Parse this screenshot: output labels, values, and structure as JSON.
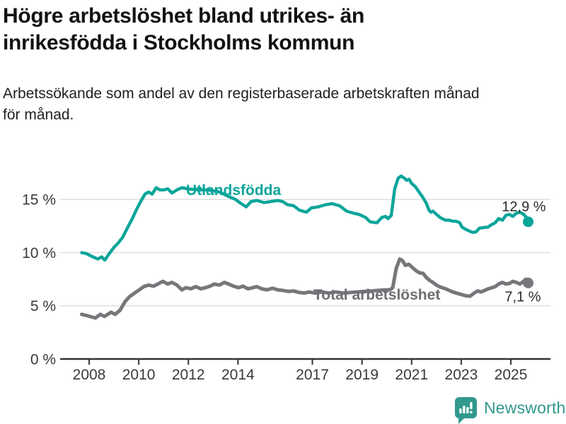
{
  "header": {
    "title_line1": "Högre arbetslöshet bland utrikes- än",
    "title_line2": "inrikesfödda i Stockholms kommun",
    "subtitle_line1": "Arbetssökande som andel av den registerbaserade arbetskraften månad",
    "subtitle_line2": "för månad."
  },
  "chart_data": {
    "type": "line",
    "title": "Högre arbetslöshet bland utrikes- än inrikesfödda i Stockholms kommun",
    "subtitle": "Arbetssökande som andel av den registerbaserade arbetskraften månad för månad.",
    "xlabel": "",
    "ylabel": "",
    "grid": true,
    "legend_position": "inline-labels",
    "xlim": [
      2007.2,
      2026.6
    ],
    "ylim": [
      0,
      18.5
    ],
    "x_ticks": [
      "2008",
      "2010",
      "2012",
      "2014",
      "2017",
      "2019",
      "2021",
      "2023",
      "2025"
    ],
    "x_tick_years": [
      2008,
      2010,
      2012,
      2014,
      2017,
      2019,
      2021,
      2023,
      2025
    ],
    "y_ticks": [
      {
        "value": 0,
        "label": "0 %"
      },
      {
        "value": 5,
        "label": "5 %"
      },
      {
        "value": 10,
        "label": "10 %"
      },
      {
        "value": 15,
        "label": "15 %"
      }
    ],
    "series": [
      {
        "name": "Utlandsfödda",
        "color": "#0ba59a",
        "end_label": "12,9 %",
        "end_value": 12.9,
        "points": [
          [
            2007.7,
            10.0
          ],
          [
            2007.9,
            9.9
          ],
          [
            2008.1,
            9.65
          ],
          [
            2008.35,
            9.4
          ],
          [
            2008.5,
            9.6
          ],
          [
            2008.63,
            9.3
          ],
          [
            2008.78,
            9.8
          ],
          [
            2009.0,
            10.5
          ],
          [
            2009.17,
            10.9
          ],
          [
            2009.34,
            11.4
          ],
          [
            2009.54,
            12.3
          ],
          [
            2009.74,
            13.2
          ],
          [
            2009.9,
            14.0
          ],
          [
            2010.1,
            14.9
          ],
          [
            2010.25,
            15.5
          ],
          [
            2010.4,
            15.7
          ],
          [
            2010.54,
            15.5
          ],
          [
            2010.7,
            16.1
          ],
          [
            2010.85,
            15.9
          ],
          [
            2011.0,
            15.9
          ],
          [
            2011.17,
            16.0
          ],
          [
            2011.34,
            15.6
          ],
          [
            2011.54,
            15.9
          ],
          [
            2011.74,
            16.1
          ],
          [
            2011.96,
            16.0
          ],
          [
            2012.4,
            15.9
          ],
          [
            2012.8,
            15.9
          ],
          [
            2013.25,
            15.7
          ],
          [
            2013.6,
            15.3
          ],
          [
            2013.9,
            15.0
          ],
          [
            2014.13,
            14.6
          ],
          [
            2014.33,
            14.3
          ],
          [
            2014.53,
            14.8
          ],
          [
            2014.76,
            14.9
          ],
          [
            2015.05,
            14.7
          ],
          [
            2015.33,
            14.8
          ],
          [
            2015.6,
            14.9
          ],
          [
            2015.8,
            14.8
          ],
          [
            2016.0,
            14.5
          ],
          [
            2016.25,
            14.4
          ],
          [
            2016.47,
            14.0
          ],
          [
            2016.76,
            13.8
          ],
          [
            2016.96,
            14.2
          ],
          [
            2017.24,
            14.3
          ],
          [
            2017.53,
            14.5
          ],
          [
            2017.8,
            14.6
          ],
          [
            2018.1,
            14.4
          ],
          [
            2018.38,
            13.9
          ],
          [
            2018.67,
            13.7
          ],
          [
            2018.87,
            13.6
          ],
          [
            2019.15,
            13.3
          ],
          [
            2019.32,
            12.9
          ],
          [
            2019.6,
            12.8
          ],
          [
            2019.8,
            13.3
          ],
          [
            2019.95,
            13.4
          ],
          [
            2020.05,
            13.2
          ],
          [
            2020.18,
            13.5
          ],
          [
            2020.32,
            16.0
          ],
          [
            2020.46,
            17.0
          ],
          [
            2020.58,
            17.2
          ],
          [
            2020.7,
            17.0
          ],
          [
            2020.8,
            16.8
          ],
          [
            2020.9,
            16.9
          ],
          [
            2021.0,
            16.5
          ],
          [
            2021.15,
            16.2
          ],
          [
            2021.3,
            15.7
          ],
          [
            2021.45,
            15.2
          ],
          [
            2021.6,
            14.6
          ],
          [
            2021.7,
            14.0
          ],
          [
            2021.78,
            13.8
          ],
          [
            2021.86,
            13.9
          ],
          [
            2022.0,
            13.6
          ],
          [
            2022.15,
            13.3
          ],
          [
            2022.23,
            13.2
          ],
          [
            2022.37,
            13.05
          ],
          [
            2022.52,
            13.05
          ],
          [
            2022.66,
            12.95
          ],
          [
            2022.8,
            12.95
          ],
          [
            2022.94,
            12.8
          ],
          [
            2023.03,
            12.4
          ],
          [
            2023.17,
            12.2
          ],
          [
            2023.31,
            12.05
          ],
          [
            2023.46,
            11.9
          ],
          [
            2023.6,
            11.95
          ],
          [
            2023.74,
            12.3
          ],
          [
            2023.9,
            12.35
          ],
          [
            2024.09,
            12.4
          ],
          [
            2024.2,
            12.6
          ],
          [
            2024.37,
            12.8
          ],
          [
            2024.51,
            13.2
          ],
          [
            2024.66,
            13.05
          ],
          [
            2024.8,
            13.5
          ],
          [
            2024.94,
            13.6
          ],
          [
            2025.08,
            13.4
          ],
          [
            2025.22,
            13.7
          ],
          [
            2025.37,
            13.8
          ],
          [
            2025.51,
            13.6
          ],
          [
            2025.63,
            13.3
          ],
          [
            2025.7,
            12.9
          ]
        ]
      },
      {
        "name": "Total arbetslöshet",
        "color": "#76767b",
        "end_label": "7,1 %",
        "end_value": 7.1,
        "points": [
          [
            2007.7,
            4.2
          ],
          [
            2007.95,
            4.05
          ],
          [
            2008.25,
            3.85
          ],
          [
            2008.45,
            4.2
          ],
          [
            2008.62,
            4.0
          ],
          [
            2008.88,
            4.4
          ],
          [
            2009.05,
            4.2
          ],
          [
            2009.25,
            4.6
          ],
          [
            2009.45,
            5.4
          ],
          [
            2009.63,
            5.85
          ],
          [
            2009.83,
            6.2
          ],
          [
            2010.02,
            6.5
          ],
          [
            2010.2,
            6.8
          ],
          [
            2010.4,
            6.95
          ],
          [
            2010.6,
            6.85
          ],
          [
            2010.77,
            7.05
          ],
          [
            2010.97,
            7.3
          ],
          [
            2011.17,
            7.05
          ],
          [
            2011.34,
            7.2
          ],
          [
            2011.54,
            6.95
          ],
          [
            2011.74,
            6.5
          ],
          [
            2011.9,
            6.7
          ],
          [
            2012.1,
            6.6
          ],
          [
            2012.3,
            6.8
          ],
          [
            2012.5,
            6.6
          ],
          [
            2012.68,
            6.7
          ],
          [
            2012.88,
            6.85
          ],
          [
            2013.05,
            7.05
          ],
          [
            2013.25,
            6.95
          ],
          [
            2013.45,
            7.2
          ],
          [
            2013.62,
            7.05
          ],
          [
            2013.82,
            6.85
          ],
          [
            2014.02,
            6.7
          ],
          [
            2014.2,
            6.85
          ],
          [
            2014.4,
            6.6
          ],
          [
            2014.6,
            6.7
          ],
          [
            2014.76,
            6.8
          ],
          [
            2014.96,
            6.6
          ],
          [
            2015.16,
            6.5
          ],
          [
            2015.4,
            6.65
          ],
          [
            2015.6,
            6.5
          ],
          [
            2015.8,
            6.45
          ],
          [
            2016.04,
            6.35
          ],
          [
            2016.24,
            6.4
          ],
          [
            2016.47,
            6.25
          ],
          [
            2016.67,
            6.2
          ],
          [
            2016.87,
            6.3
          ],
          [
            2017.1,
            6.2
          ],
          [
            2017.38,
            6.3
          ],
          [
            2017.67,
            6.2
          ],
          [
            2017.95,
            6.3
          ],
          [
            2018.24,
            6.2
          ],
          [
            2018.52,
            6.25
          ],
          [
            2018.8,
            6.3
          ],
          [
            2019.1,
            6.35
          ],
          [
            2019.38,
            6.4
          ],
          [
            2019.66,
            6.45
          ],
          [
            2019.95,
            6.5
          ],
          [
            2020.12,
            6.5
          ],
          [
            2020.24,
            6.7
          ],
          [
            2020.38,
            8.5
          ],
          [
            2020.52,
            9.4
          ],
          [
            2020.63,
            9.25
          ],
          [
            2020.75,
            8.8
          ],
          [
            2020.89,
            8.9
          ],
          [
            2021.03,
            8.6
          ],
          [
            2021.18,
            8.3
          ],
          [
            2021.32,
            8.1
          ],
          [
            2021.46,
            8.05
          ],
          [
            2021.58,
            7.7
          ],
          [
            2021.72,
            7.4
          ],
          [
            2021.86,
            7.2
          ],
          [
            2022.0,
            6.95
          ],
          [
            2022.12,
            6.8
          ],
          [
            2022.37,
            6.6
          ],
          [
            2022.66,
            6.3
          ],
          [
            2022.95,
            6.1
          ],
          [
            2023.17,
            5.95
          ],
          [
            2023.35,
            5.9
          ],
          [
            2023.52,
            6.2
          ],
          [
            2023.66,
            6.4
          ],
          [
            2023.8,
            6.3
          ],
          [
            2024.09,
            6.6
          ],
          [
            2024.37,
            6.8
          ],
          [
            2024.51,
            7.05
          ],
          [
            2024.66,
            7.2
          ],
          [
            2024.8,
            7.05
          ],
          [
            2024.94,
            7.1
          ],
          [
            2025.08,
            7.3
          ],
          [
            2025.22,
            7.2
          ],
          [
            2025.37,
            7.05
          ],
          [
            2025.51,
            7.3
          ],
          [
            2025.6,
            7.5
          ],
          [
            2025.7,
            7.15
          ]
        ]
      }
    ]
  },
  "colors": {
    "foreign_born_line": "#0ba59a",
    "total_line": "#76767b",
    "axis": "#333333",
    "gridline": "#dcdcdc",
    "brand_teal": "#31998c"
  },
  "footer": {
    "brand": "Newsworthy"
  }
}
